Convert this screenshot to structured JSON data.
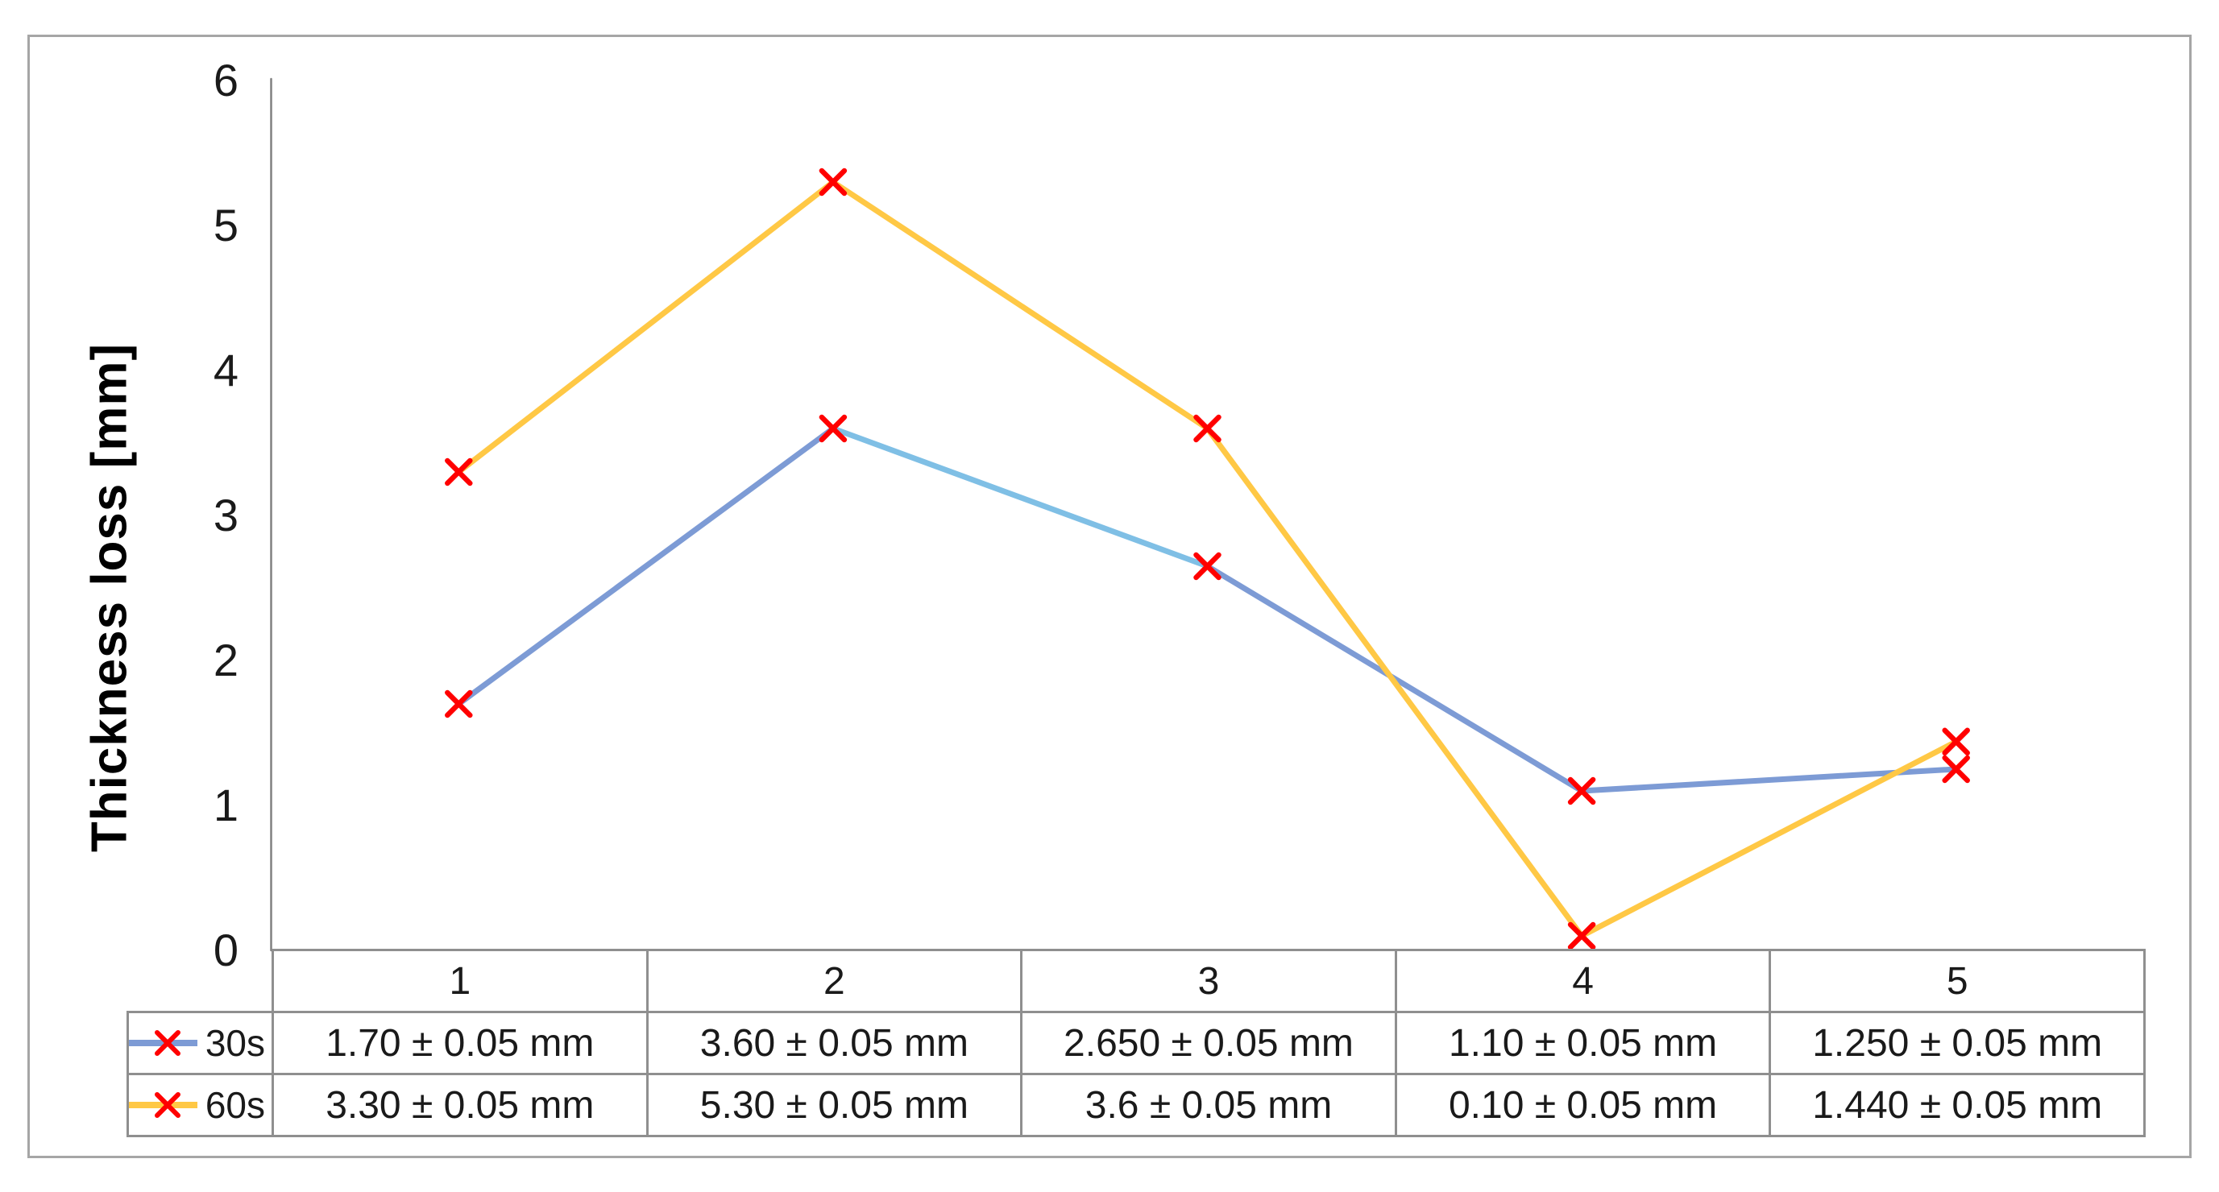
{
  "chart_data": {
    "type": "line",
    "title": "",
    "xlabel": "",
    "ylabel": "Thickness loss [mm]",
    "categories": [
      "1",
      "2",
      "3",
      "4",
      "5"
    ],
    "yticks": [
      0,
      1,
      2,
      3,
      4,
      5,
      6
    ],
    "ylim": [
      0,
      6
    ],
    "grid": false,
    "legend_position": "table-left",
    "marker": {
      "shape": "x",
      "color": "#FF0000"
    },
    "series": [
      {
        "name": "30s",
        "values": [
          1.7,
          3.6,
          2.65,
          1.1,
          1.25
        ],
        "color": "#7D9BD5",
        "segment_colors": [
          "#7D9BD5",
          "#7FBFE5",
          "#7D9BD5",
          "#7D9BD5"
        ],
        "labels": [
          "1.70 ± 0.05 mm",
          "3.60 ± 0.05 mm",
          "2.650 ± 0.05 mm",
          "1.10 ± 0.05 mm",
          "1.250 ± 0.05 mm"
        ]
      },
      {
        "name": "60s",
        "values": [
          3.3,
          5.3,
          3.6,
          0.1,
          1.44
        ],
        "color": "#FFC845",
        "segment_colors": [
          "#FFC845",
          "#FFC845",
          "#FFC845",
          "#FFC845"
        ],
        "labels": [
          "3.30 ± 0.05 mm",
          "5.30 ± 0.05 mm",
          "3.6 ± 0.05 mm",
          "0.10 ± 0.05 mm",
          "1.440 ± 0.05 mm"
        ]
      }
    ],
    "colors": {
      "axis": "#808080",
      "table_border": "#8F8F8F",
      "frame_border": "#A6A6A6",
      "text": "#1A1A1A"
    }
  }
}
